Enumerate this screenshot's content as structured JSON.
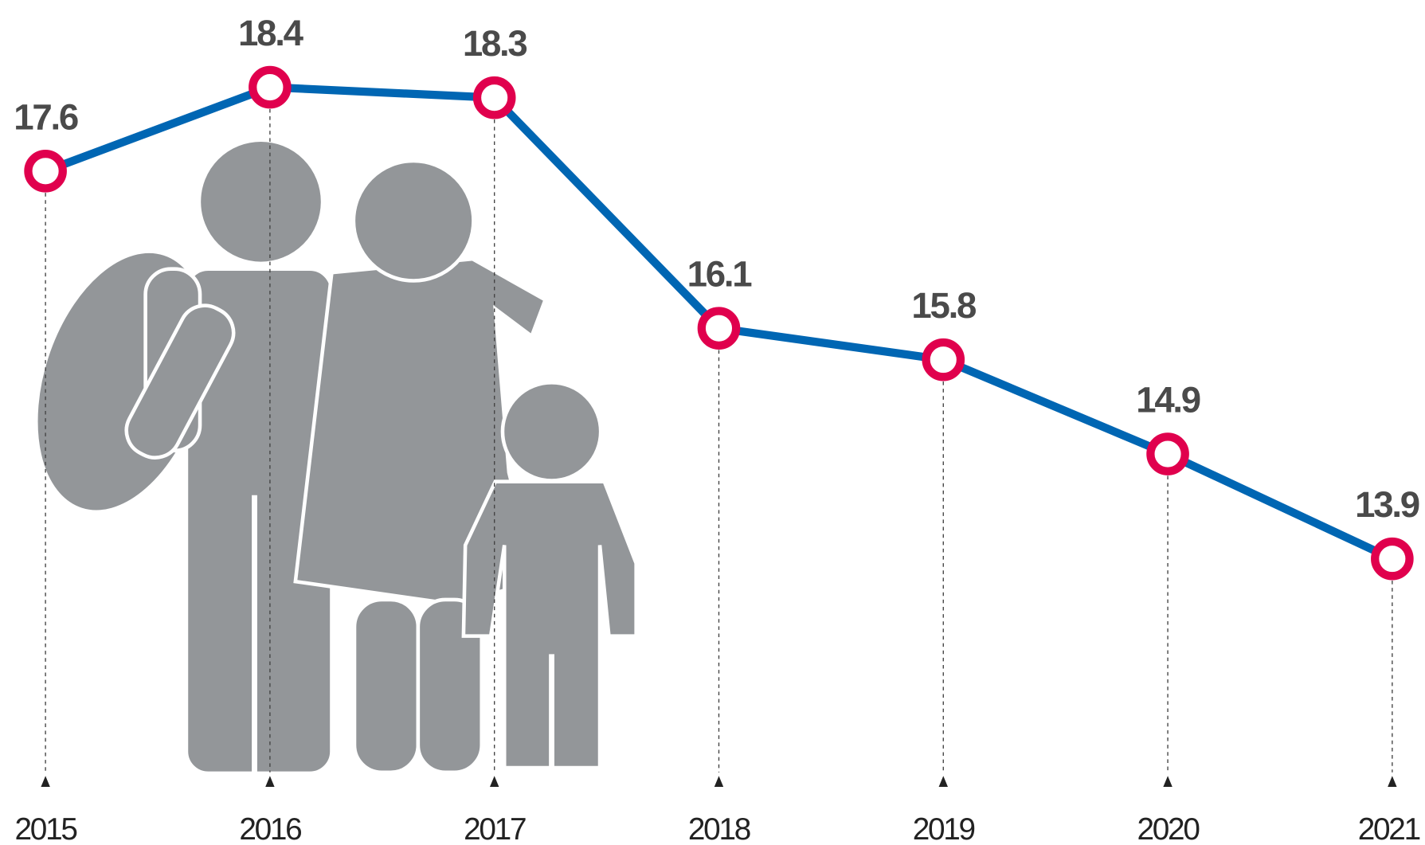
{
  "chart_data": {
    "type": "line",
    "categories": [
      "2015",
      "2016",
      "2017",
      "2018",
      "2019",
      "2020",
      "2021"
    ],
    "series": [
      {
        "color": "#0066b3",
        "values": [
          17.6,
          18.4,
          18.3,
          16.1,
          15.8,
          14.9,
          13.9
        ]
      }
    ],
    "marker_color": "#e0004d"
  }
}
